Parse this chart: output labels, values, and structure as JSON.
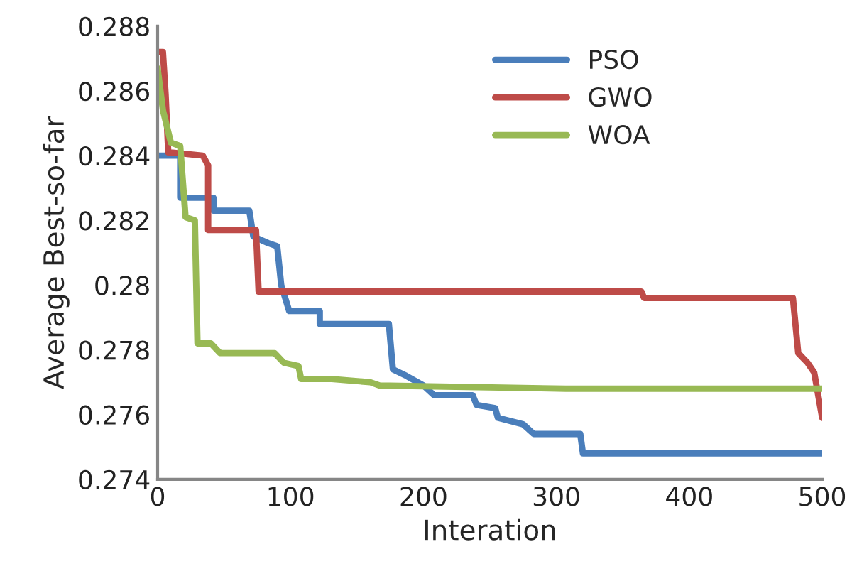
{
  "chart_data": {
    "type": "line",
    "xlabel": "Interation",
    "ylabel": "Average Best-so-far",
    "xlim": [
      0,
      500
    ],
    "xticks": [
      0,
      100,
      200,
      300,
      400,
      500
    ],
    "ylim": [
      0.274,
      0.288
    ],
    "yticks": [
      0.274,
      0.276,
      0.278,
      0.28,
      0.282,
      0.284,
      0.286,
      0.288
    ],
    "grid": false,
    "legend": "top right",
    "marker": "none",
    "line_style": "solid",
    "series": [
      {
        "name": "PSO",
        "color": "#4a7ebb",
        "x": [
          0,
          17,
          17,
          42,
          42,
          69,
          72,
          83,
          90,
          93,
          99,
          122,
          122,
          174,
          177,
          187,
          200,
          208,
          237,
          240,
          254,
          256,
          275,
          283,
          318,
          320,
          500
        ],
        "values": [
          0.284,
          0.284,
          0.2827,
          0.2827,
          0.2823,
          0.2823,
          0.2815,
          0.2813,
          0.2812,
          0.28,
          0.2792,
          0.2792,
          0.2788,
          0.2788,
          0.2774,
          0.2772,
          0.2769,
          0.2766,
          0.2766,
          0.2763,
          0.2762,
          0.2759,
          0.2757,
          0.2754,
          0.2754,
          0.2748,
          0.2748
        ]
      },
      {
        "name": "GWO",
        "color": "#be4b48",
        "x": [
          0,
          4,
          6,
          8,
          10,
          34,
          38,
          38,
          74,
          76,
          364,
          366,
          478,
          482,
          489,
          494,
          500
        ],
        "values": [
          0.2872,
          0.2872,
          0.2859,
          0.2841,
          0.2841,
          0.284,
          0.2837,
          0.2817,
          0.2817,
          0.2798,
          0.2798,
          0.2796,
          0.2796,
          0.2779,
          0.2776,
          0.2773,
          0.2759
        ]
      },
      {
        "name": "WOA",
        "color": "#98b954",
        "x": [
          0,
          4,
          10,
          17,
          21,
          28,
          30,
          40,
          47,
          88,
          95,
          106,
          108,
          131,
          160,
          167,
          307,
          500
        ],
        "values": [
          0.2867,
          0.2854,
          0.2844,
          0.2843,
          0.2821,
          0.282,
          0.2782,
          0.2782,
          0.2779,
          0.2779,
          0.2776,
          0.2775,
          0.2771,
          0.2771,
          0.277,
          0.2769,
          0.2768,
          0.2768
        ]
      }
    ]
  }
}
